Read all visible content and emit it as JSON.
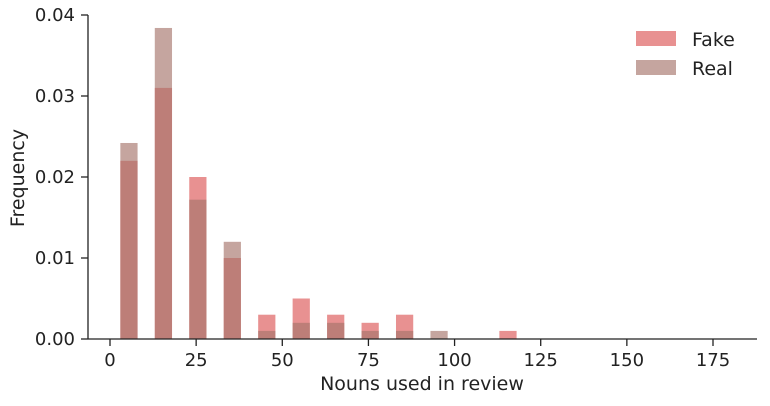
{
  "chart_data": {
    "type": "bar",
    "title": "",
    "xlabel": "Nouns used in review",
    "ylabel": "Frequency",
    "xlim": [
      -5,
      186
    ],
    "ylim": [
      0,
      0.04
    ],
    "xticks": [
      0,
      25,
      50,
      75,
      100,
      125,
      150,
      175
    ],
    "xtick_labels": [
      "0",
      "25",
      "50",
      "75",
      "100",
      "125",
      "150",
      "175"
    ],
    "yticks": [
      0,
      0.01,
      0.02,
      0.03,
      0.04
    ],
    "ytick_labels": [
      "0.00",
      "0.01",
      "0.02",
      "0.03",
      "0.04"
    ],
    "bin_width": 5,
    "grid": false,
    "legend_position": "top-right",
    "series": [
      {
        "name": "Fake",
        "color": "#e06c6c",
        "opacity": 0.75,
        "bins": [
          {
            "start": 3,
            "end": 8,
            "value": 0.022
          },
          {
            "start": 13,
            "end": 18,
            "value": 0.031
          },
          {
            "start": 23,
            "end": 28,
            "value": 0.02
          },
          {
            "start": 33,
            "end": 38,
            "value": 0.01
          },
          {
            "start": 43,
            "end": 48,
            "value": 0.003
          },
          {
            "start": 53,
            "end": 58,
            "value": 0.005
          },
          {
            "start": 63,
            "end": 68,
            "value": 0.003
          },
          {
            "start": 73,
            "end": 78,
            "value": 0.002
          },
          {
            "start": 83,
            "end": 88,
            "value": 0.003
          },
          {
            "start": 113,
            "end": 118,
            "value": 0.001
          }
        ]
      },
      {
        "name": "Real",
        "color": "#a6746b",
        "opacity": 0.65,
        "bins": [
          {
            "start": 3,
            "end": 8,
            "value": 0.0242
          },
          {
            "start": 13,
            "end": 18,
            "value": 0.0384
          },
          {
            "start": 23,
            "end": 28,
            "value": 0.0172
          },
          {
            "start": 33,
            "end": 38,
            "value": 0.012
          },
          {
            "start": 43,
            "end": 48,
            "value": 0.001
          },
          {
            "start": 53,
            "end": 58,
            "value": 0.002
          },
          {
            "start": 63,
            "end": 68,
            "value": 0.002
          },
          {
            "start": 73,
            "end": 78,
            "value": 0.001
          },
          {
            "start": 83,
            "end": 88,
            "value": 0.001
          },
          {
            "start": 93,
            "end": 98,
            "value": 0.001
          }
        ]
      }
    ]
  }
}
